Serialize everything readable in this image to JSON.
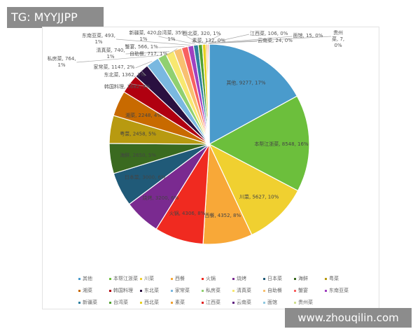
{
  "watermarks": {
    "top_left": "TG: MYYJJPP",
    "bottom_right": "www.zhouqilin.com"
  },
  "chart_data": {
    "type": "pie",
    "title": "",
    "legend_position": "bottom",
    "start_angle": "12 o'clock, clockwise",
    "slices": [
      {
        "name": "其他",
        "value": 9277,
        "pct": "17%",
        "color": "#4a9bcc"
      },
      {
        "name": "本帮江浙菜",
        "value": 8548,
        "pct": "16%",
        "color": "#6cbf3c"
      },
      {
        "name": "川菜",
        "value": 5627,
        "pct": "10%",
        "color": "#f0d030"
      },
      {
        "name": "西餐",
        "value": 4352,
        "pct": "8%",
        "color": "#f8a838"
      },
      {
        "name": "火锅",
        "value": 4306,
        "pct": "8%",
        "color": "#f02a20"
      },
      {
        "name": "烧烤",
        "value": 3200,
        "pct": "6%",
        "color": "#7a2a90"
      },
      {
        "name": "日本菜",
        "value": 3000,
        "pct": "6%",
        "color": "#205a78"
      },
      {
        "name": "海鲜",
        "value": 2650,
        "pct": "5%",
        "color": "#3a6a20"
      },
      {
        "name": "粤菜",
        "value": 2458,
        "pct": "5%",
        "color": "#b89a10"
      },
      {
        "name": "湘菜",
        "value": 2248,
        "pct": "4%",
        "color": "#c86a00"
      },
      {
        "name": "韩国料理",
        "value": 1682,
        "pct": "3%",
        "color": "#b00010"
      },
      {
        "name": "东北菜",
        "value": 1362,
        "pct": "2%",
        "color": "#2a1040"
      },
      {
        "name": "家常菜",
        "value": 1147,
        "pct": "2%",
        "color": "#7ab8e0"
      },
      {
        "name": "私房菜",
        "value": 764,
        "pct": "1%",
        "color": "#90d070"
      },
      {
        "name": "清真菜",
        "value": 740,
        "pct": "1%",
        "color": "#f8e870"
      },
      {
        "name": "自助餐",
        "value": 717,
        "pct": "1%",
        "color": "#f8c070"
      },
      {
        "name": "蟹宴",
        "value": 566,
        "pct": "1%",
        "color": "#f86060"
      },
      {
        "name": "东南亚菜",
        "value": 493,
        "pct": "1%",
        "color": "#a040c0"
      },
      {
        "name": "新疆菜",
        "value": 420,
        "pct": "1%",
        "color": "#3080a0"
      },
      {
        "name": "台湾菜",
        "value": 359,
        "pct": "1%",
        "color": "#50a030"
      },
      {
        "name": "西北菜",
        "value": 320,
        "pct": "1%",
        "color": "#e8d020"
      },
      {
        "name": "素菜",
        "value": 132,
        "pct": "0%",
        "color": "#f0a030"
      },
      {
        "name": "江西菜",
        "value": 106,
        "pct": "0%",
        "color": "#e02020"
      },
      {
        "name": "云南菜",
        "value": 24,
        "pct": "0%",
        "color": "#602080"
      },
      {
        "name": "面馆",
        "value": 15,
        "pct": "0%",
        "color": "#90c8e0"
      },
      {
        "name": "贵州菜",
        "value": 7,
        "pct": "0%",
        "color": "#d0e090"
      }
    ]
  }
}
